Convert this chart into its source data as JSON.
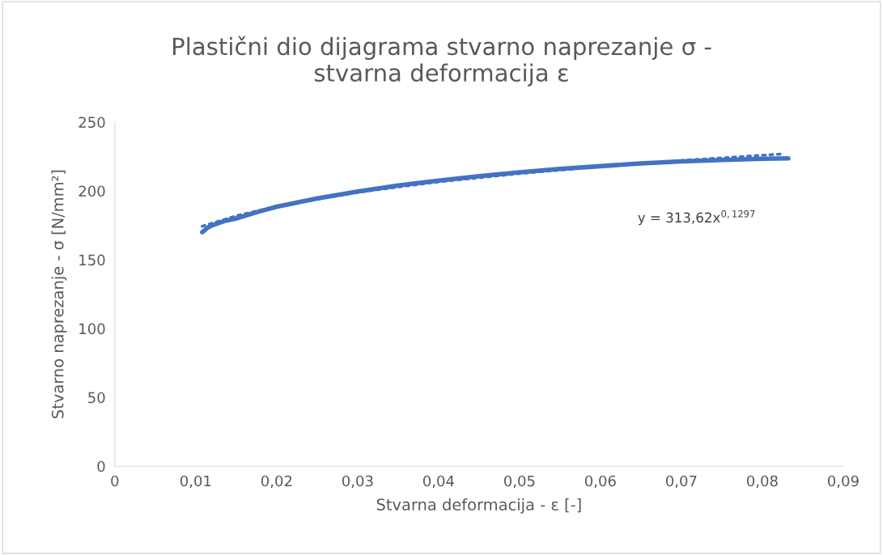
{
  "chart_data": {
    "type": "line",
    "title": "Plastični dio dijagrama stvarno naprezanje σ - stvarna deformacija ε",
    "xlabel": "Stvarna deformacija - ε [-]",
    "ylabel": "Stvarno naprezanje - σ [N/mm²]",
    "xlim": [
      0,
      0.09
    ],
    "xticks": [
      {
        "value": 0,
        "label": "0"
      },
      {
        "value": 0.01,
        "label": "0,01"
      },
      {
        "value": 0.02,
        "label": "0,02"
      },
      {
        "value": 0.03,
        "label": "0,03"
      },
      {
        "value": 0.04,
        "label": "0,04"
      },
      {
        "value": 0.05,
        "label": "0,05"
      },
      {
        "value": 0.06,
        "label": "0,06"
      },
      {
        "value": 0.07,
        "label": "0,07"
      },
      {
        "value": 0.08,
        "label": "0,08"
      },
      {
        "value": 0.09,
        "label": "0,09"
      }
    ],
    "ylim": [
      0,
      250
    ],
    "yticks": [
      0,
      50,
      100,
      150,
      200,
      250
    ],
    "grid": false,
    "series": [
      {
        "color": "#4472c4",
        "line_style": "solid",
        "x": [
          0.0108,
          0.0114,
          0.012,
          0.0135,
          0.015,
          0.0175,
          0.02,
          0.025,
          0.03,
          0.035,
          0.04,
          0.045,
          0.05,
          0.055,
          0.06,
          0.065,
          0.07,
          0.075,
          0.08,
          0.0832
        ],
        "values": [
          170,
          173,
          175,
          178,
          180,
          184.5,
          188.5,
          194.5,
          199.5,
          204,
          207.5,
          210.7,
          213.5,
          216,
          218,
          220,
          221.5,
          222.5,
          223.3,
          223.6
        ]
      },
      {
        "color": "#4472c4",
        "line_style": "dotted",
        "x": [
          0.0108,
          0.015,
          0.02,
          0.03,
          0.04,
          0.05,
          0.06,
          0.07,
          0.0826
        ],
        "values": [
          174.3,
          181.9,
          188.8,
          199,
          206.6,
          212.6,
          217.7,
          222.1,
          226.9
        ]
      }
    ],
    "annotations": [
      "y = 313,62x$^{0,1297}$"
    ]
  }
}
